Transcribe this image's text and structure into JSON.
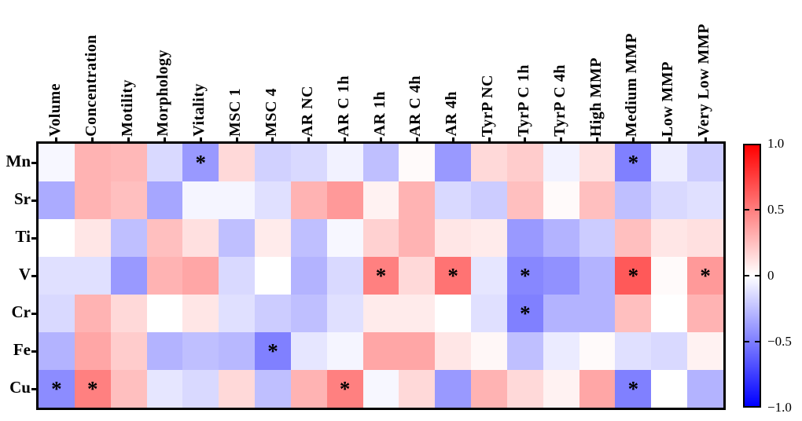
{
  "chart_data": {
    "type": "heatmap",
    "columns": [
      "Volume",
      "Concentration",
      "Motility",
      "Morphology",
      "Vitality",
      "MSC 1",
      "MSC 4",
      "AR NC",
      "AR C 1h",
      "AR 1h",
      "AR C 4h",
      "AR 4h",
      "TyrP NC",
      "TyrP C 1h",
      "TyrP C 4h",
      "High MMP",
      "Medium MMP",
      "Low MMP",
      "Very Low MMP"
    ],
    "rows": [
      "Mn",
      "Sr",
      "Ti",
      "V",
      "Cr",
      "Fe",
      "Cu"
    ],
    "values": [
      [
        -0.03,
        0.3,
        0.28,
        -0.15,
        -0.4,
        0.15,
        -0.18,
        -0.15,
        -0.05,
        -0.25,
        0.02,
        -0.4,
        0.15,
        0.2,
        -0.05,
        0.12,
        -0.5,
        -0.07,
        -0.2
      ],
      [
        -0.33,
        0.3,
        0.25,
        -0.35,
        -0.04,
        -0.04,
        -0.12,
        0.3,
        0.4,
        0.05,
        0.3,
        -0.15,
        -0.2,
        0.25,
        0.02,
        0.25,
        -0.25,
        -0.15,
        -0.12
      ],
      [
        0.0,
        0.1,
        -0.25,
        0.25,
        0.12,
        -0.25,
        0.08,
        -0.25,
        -0.03,
        0.18,
        0.3,
        0.1,
        0.08,
        -0.4,
        -0.3,
        -0.2,
        0.25,
        0.1,
        0.12
      ],
      [
        -0.12,
        -0.12,
        -0.4,
        0.3,
        0.35,
        -0.15,
        0.0,
        -0.3,
        -0.15,
        0.5,
        0.15,
        0.55,
        -0.1,
        -0.47,
        -0.43,
        -0.3,
        0.65,
        0.02,
        0.4
      ],
      [
        -0.15,
        0.3,
        0.15,
        0.0,
        0.1,
        -0.12,
        -0.2,
        -0.25,
        -0.12,
        0.08,
        0.08,
        0.0,
        -0.12,
        -0.5,
        -0.3,
        -0.3,
        0.25,
        0.0,
        0.3
      ],
      [
        -0.3,
        0.35,
        0.2,
        -0.3,
        -0.25,
        -0.28,
        -0.5,
        -0.1,
        -0.04,
        0.35,
        0.35,
        0.1,
        0.03,
        -0.25,
        -0.08,
        0.02,
        -0.12,
        -0.15,
        0.05
      ],
      [
        -0.45,
        0.5,
        0.25,
        -0.1,
        -0.15,
        0.15,
        -0.25,
        0.3,
        0.5,
        -0.03,
        0.15,
        -0.4,
        0.3,
        0.15,
        0.05,
        0.35,
        -0.5,
        0.0,
        -0.3
      ]
    ],
    "significant_cells": [
      [
        0,
        4
      ],
      [
        0,
        16
      ],
      [
        3,
        9
      ],
      [
        3,
        11
      ],
      [
        3,
        13
      ],
      [
        3,
        16
      ],
      [
        3,
        18
      ],
      [
        4,
        13
      ],
      [
        5,
        6
      ],
      [
        6,
        0
      ],
      [
        6,
        1
      ],
      [
        6,
        8
      ],
      [
        6,
        16
      ]
    ],
    "significance_marker": "*",
    "vmin": -1.0,
    "vmax": 1.0,
    "colorbar_tick_labels": [
      "1.0",
      "0.5",
      "0",
      "−0.5",
      "−1.0"
    ],
    "colormap": "blue-white-red",
    "colors": {
      "positive_max": "#FF0000",
      "zero": "#FFFFFF",
      "negative_max": "#0000FF",
      "axis": "#000000",
      "background": "#FFFFFF"
    },
    "legend_position": "right-colorbar",
    "grid": false
  }
}
